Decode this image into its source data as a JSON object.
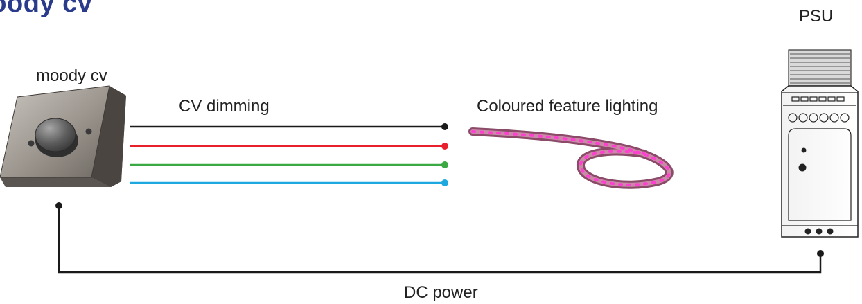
{
  "title": "moody cv",
  "labels": {
    "dimmer": "moody cv",
    "cv_dimming": "CV dimming",
    "lighting": "Coloured feature lighting",
    "psu": "PSU",
    "dc_power": "DC power"
  },
  "wires": [
    {
      "name": "wire-black",
      "color": "#1a1a1a"
    },
    {
      "name": "wire-red",
      "color": "#e8202b"
    },
    {
      "name": "wire-green",
      "color": "#3aa843"
    },
    {
      "name": "wire-blue",
      "color": "#1ea8e0"
    }
  ],
  "colors": {
    "title": "#2b3b8c",
    "led": "#ff3fd2"
  }
}
